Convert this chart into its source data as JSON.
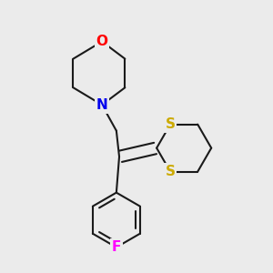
{
  "bg_color": "#ebebeb",
  "bond_color": "#1a1a1a",
  "bond_width": 1.5,
  "atom_colors": {
    "O": "#ff0000",
    "N": "#0000ee",
    "S": "#ccaa00",
    "F": "#ff00ff",
    "C": "#1a1a1a"
  },
  "font_size": 11,
  "atom_bg": "#ebebeb"
}
